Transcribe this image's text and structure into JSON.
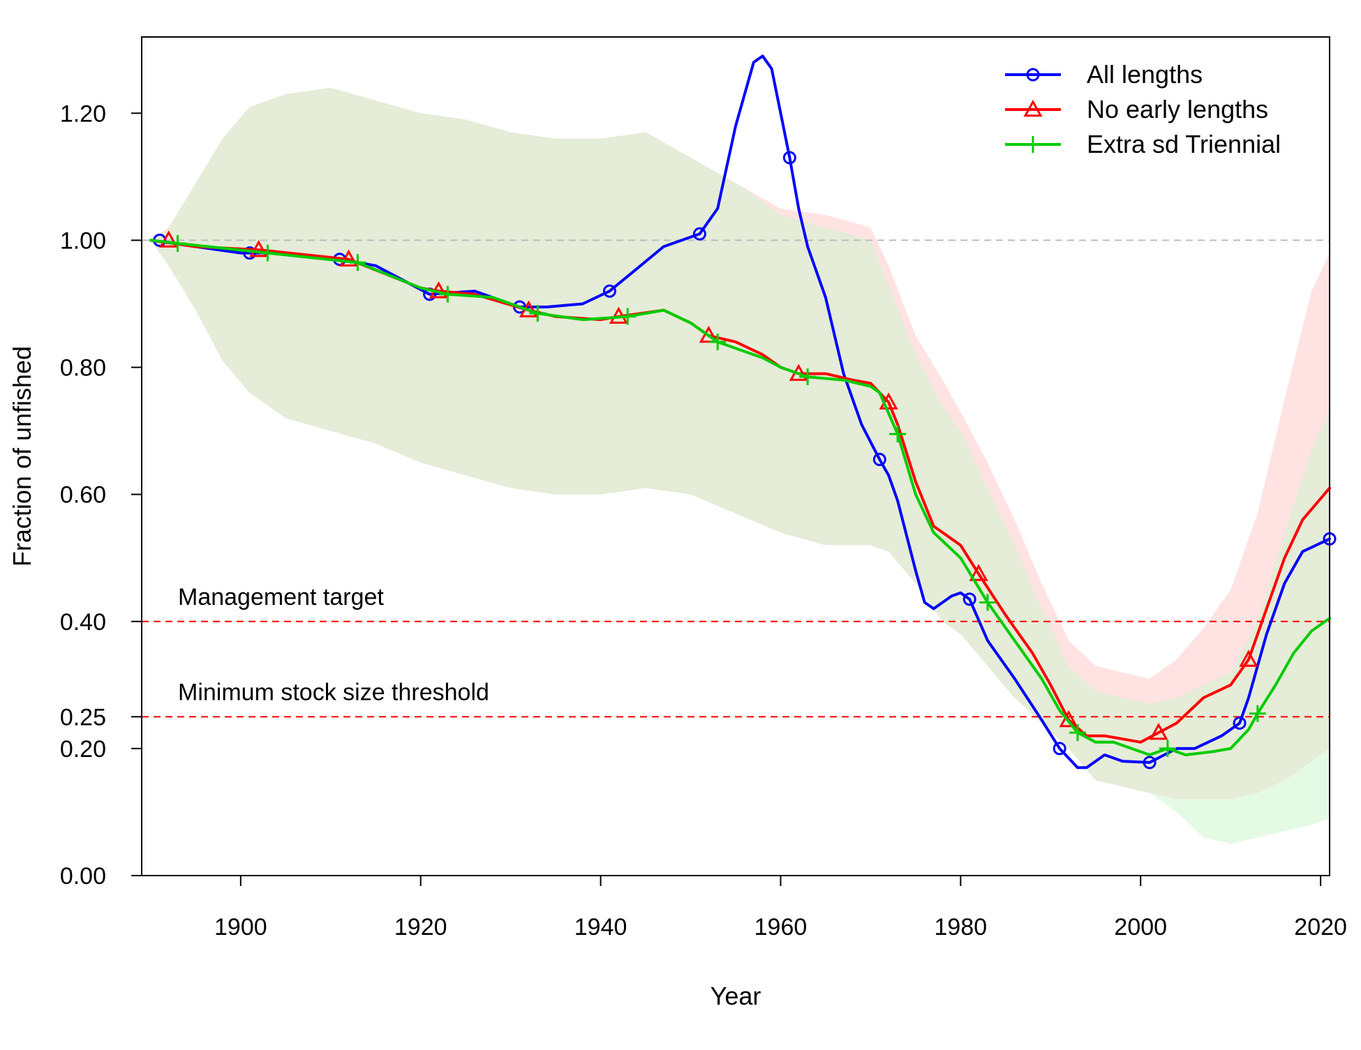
{
  "chart_data": {
    "type": "line",
    "title": "",
    "xlabel": "Year",
    "ylabel": "Fraction of unfished",
    "xlim": [
      1889,
      2021
    ],
    "ylim": [
      0,
      1.32
    ],
    "x_ticks": [
      1900,
      1920,
      1940,
      1960,
      1980,
      2000,
      2020
    ],
    "x_tick_labels": [
      "1900",
      "1920",
      "1940",
      "1960",
      "1980",
      "2000",
      "2020"
    ],
    "y_ticks": [
      0,
      0.2,
      0.25,
      0.4,
      0.6,
      0.8,
      1.0,
      1.2
    ],
    "y_tick_labels": [
      "0.00",
      "0.20",
      "0.25",
      "0.40",
      "0.60",
      "0.80",
      "1.00",
      "1.20"
    ],
    "grid": false,
    "legend_position": "top-right",
    "reference_lines": [
      {
        "y": 1.0,
        "style": "dashed",
        "color": "#bdbdbd",
        "label": ""
      },
      {
        "y": 0.4,
        "style": "dashed",
        "color": "#ff0000",
        "label": "Management target"
      },
      {
        "y": 0.25,
        "style": "dashed",
        "color": "#ff0000",
        "label": "Minimum stock size threshold"
      }
    ],
    "bands": [
      {
        "name": "No early lengths interval",
        "color": "#ffc8c8",
        "opacity": 0.5,
        "x": [
          1890,
          1892,
          1895,
          1898,
          1901,
          1905,
          1910,
          1915,
          1920,
          1925,
          1930,
          1935,
          1940,
          1945,
          1950,
          1955,
          1960,
          1965,
          1970,
          1972,
          1975,
          1978,
          1980,
          1983,
          1986,
          1989,
          1992,
          1995,
          1998,
          2001,
          2004,
          2007,
          2010,
          2013,
          2016,
          2019,
          2021
        ],
        "upper": [
          1.0,
          1.02,
          1.09,
          1.16,
          1.21,
          1.23,
          1.24,
          1.22,
          1.2,
          1.19,
          1.17,
          1.16,
          1.16,
          1.17,
          1.13,
          1.09,
          1.05,
          1.04,
          1.02,
          0.96,
          0.85,
          0.78,
          0.73,
          0.65,
          0.56,
          0.46,
          0.37,
          0.33,
          0.32,
          0.31,
          0.34,
          0.39,
          0.45,
          0.57,
          0.75,
          0.92,
          0.98
        ],
        "lower": [
          1.0,
          0.96,
          0.89,
          0.81,
          0.76,
          0.72,
          0.7,
          0.68,
          0.65,
          0.63,
          0.61,
          0.6,
          0.6,
          0.61,
          0.6,
          0.57,
          0.54,
          0.52,
          0.52,
          0.51,
          0.46,
          0.4,
          0.38,
          0.33,
          0.28,
          0.24,
          0.2,
          0.15,
          0.14,
          0.13,
          0.12,
          0.12,
          0.12,
          0.13,
          0.15,
          0.18,
          0.2
        ]
      },
      {
        "name": "Extra sd Triennial interval",
        "color": "#ccf5cc",
        "opacity": 0.5,
        "x": [
          1890,
          1892,
          1895,
          1898,
          1901,
          1905,
          1910,
          1915,
          1920,
          1925,
          1930,
          1935,
          1940,
          1945,
          1950,
          1955,
          1960,
          1965,
          1970,
          1972,
          1975,
          1978,
          1980,
          1983,
          1986,
          1989,
          1992,
          1995,
          1998,
          2001,
          2004,
          2007,
          2010,
          2013,
          2016,
          2019,
          2021
        ],
        "upper": [
          1.0,
          1.02,
          1.09,
          1.16,
          1.21,
          1.23,
          1.24,
          1.22,
          1.2,
          1.19,
          1.17,
          1.16,
          1.16,
          1.17,
          1.13,
          1.09,
          1.04,
          1.02,
          1.0,
          0.93,
          0.82,
          0.74,
          0.7,
          0.61,
          0.52,
          0.42,
          0.33,
          0.29,
          0.28,
          0.27,
          0.28,
          0.3,
          0.32,
          0.4,
          0.54,
          0.67,
          0.73
        ],
        "lower": [
          1.0,
          0.96,
          0.89,
          0.81,
          0.76,
          0.72,
          0.7,
          0.68,
          0.65,
          0.63,
          0.61,
          0.6,
          0.6,
          0.61,
          0.6,
          0.57,
          0.54,
          0.52,
          0.52,
          0.51,
          0.46,
          0.4,
          0.38,
          0.33,
          0.28,
          0.24,
          0.2,
          0.15,
          0.14,
          0.13,
          0.1,
          0.06,
          0.05,
          0.06,
          0.07,
          0.08,
          0.09
        ]
      }
    ],
    "series": [
      {
        "name": "All lengths",
        "color": "#0000ff",
        "marker": "circle",
        "x": [
          1890,
          1895,
          1900,
          1905,
          1911,
          1915,
          1921,
          1926,
          1931,
          1934,
          1938,
          1941,
          1944,
          1947,
          1951,
          1953,
          1955,
          1957,
          1958,
          1959,
          1961,
          1962,
          1963,
          1965,
          1967,
          1969,
          1971,
          1972,
          1973,
          1975,
          1976,
          1977,
          1979,
          1980,
          1981,
          1983,
          1986,
          1989,
          1991,
          1993,
          1994,
          1996,
          1998,
          2001,
          2004,
          2006,
          2009,
          2010,
          2011,
          2012,
          2014,
          2016,
          2018,
          2021
        ],
        "y": [
          1.0,
          0.99,
          0.98,
          0.98,
          0.97,
          0.96,
          0.915,
          0.92,
          0.895,
          0.895,
          0.9,
          0.92,
          0.955,
          0.99,
          1.01,
          1.05,
          1.18,
          1.28,
          1.29,
          1.27,
          1.13,
          1.05,
          0.99,
          0.91,
          0.79,
          0.71,
          0.655,
          0.63,
          0.59,
          0.48,
          0.43,
          0.42,
          0.44,
          0.445,
          0.435,
          0.37,
          0.31,
          0.245,
          0.2,
          0.17,
          0.17,
          0.19,
          0.18,
          0.178,
          0.2,
          0.2,
          0.22,
          0.23,
          0.24,
          0.28,
          0.38,
          0.46,
          0.51,
          0.53
        ],
        "marker_x": [
          1891,
          1901,
          1911,
          1921,
          1931,
          1941,
          1951,
          1961,
          1971,
          1981,
          1991,
          2001,
          2011,
          2021
        ],
        "marker_y": [
          1.0,
          0.98,
          0.97,
          0.915,
          0.895,
          0.92,
          1.01,
          1.13,
          0.655,
          0.435,
          0.2,
          0.178,
          0.24,
          0.53
        ]
      },
      {
        "name": "No early lengths",
        "color": "#ff0000",
        "marker": "triangle",
        "x": [
          1890,
          1895,
          1902,
          1912,
          1920,
          1922,
          1926,
          1932,
          1935,
          1940,
          1942,
          1947,
          1950,
          1952,
          1955,
          1958,
          1960,
          1962,
          1965,
          1968,
          1970,
          1972,
          1973,
          1975,
          1977,
          1980,
          1982,
          1985,
          1988,
          1990,
          1992,
          1994,
          1996,
          1998,
          2000,
          2002,
          2004,
          2007,
          2010,
          2011,
          2012,
          2014,
          2016,
          2018,
          2021
        ],
        "y": [
          1.0,
          0.99,
          0.985,
          0.97,
          0.925,
          0.92,
          0.915,
          0.89,
          0.88,
          0.875,
          0.88,
          0.89,
          0.87,
          0.85,
          0.84,
          0.82,
          0.8,
          0.79,
          0.79,
          0.78,
          0.775,
          0.745,
          0.71,
          0.62,
          0.55,
          0.52,
          0.475,
          0.41,
          0.35,
          0.3,
          0.245,
          0.22,
          0.22,
          0.215,
          0.21,
          0.225,
          0.24,
          0.28,
          0.3,
          0.32,
          0.34,
          0.42,
          0.5,
          0.56,
          0.61
        ],
        "marker_x": [
          1892,
          1902,
          1912,
          1922,
          1932,
          1942,
          1952,
          1962,
          1972,
          1982,
          1992,
          2002,
          2012
        ],
        "marker_y": [
          1.0,
          0.985,
          0.97,
          0.92,
          0.89,
          0.88,
          0.85,
          0.79,
          0.745,
          0.475,
          0.245,
          0.225,
          0.34
        ]
      },
      {
        "name": "Extra sd Triennial",
        "color": "#00cc00",
        "marker": "plus",
        "x": [
          1890,
          1893,
          1903,
          1913,
          1920,
          1923,
          1928,
          1933,
          1938,
          1943,
          1947,
          1950,
          1953,
          1958,
          1960,
          1963,
          1967,
          1970,
          1971,
          1973,
          1975,
          1977,
          1980,
          1983,
          1986,
          1989,
          1991,
          1993,
          1995,
          1997,
          1999,
          2001,
          2003,
          2005,
          2008,
          2010,
          2012,
          2013,
          2015,
          2017,
          2019,
          2021
        ],
        "y": [
          1.0,
          0.995,
          0.98,
          0.965,
          0.925,
          0.915,
          0.91,
          0.885,
          0.875,
          0.88,
          0.89,
          0.87,
          0.84,
          0.815,
          0.8,
          0.785,
          0.78,
          0.77,
          0.76,
          0.695,
          0.6,
          0.54,
          0.5,
          0.43,
          0.37,
          0.31,
          0.26,
          0.225,
          0.21,
          0.21,
          0.2,
          0.19,
          0.2,
          0.19,
          0.195,
          0.2,
          0.23,
          0.255,
          0.3,
          0.35,
          0.385,
          0.405
        ],
        "marker_x": [
          1893,
          1903,
          1913,
          1923,
          1933,
          1943,
          1953,
          1963,
          1973,
          1983,
          1993,
          2003,
          2013
        ],
        "marker_y": [
          0.995,
          0.98,
          0.965,
          0.915,
          0.885,
          0.88,
          0.84,
          0.785,
          0.695,
          0.43,
          0.225,
          0.2,
          0.255
        ]
      }
    ]
  }
}
